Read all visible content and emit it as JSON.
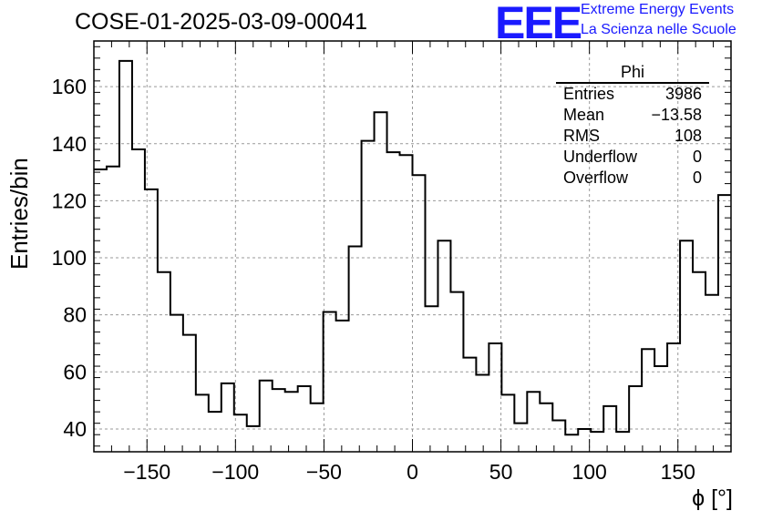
{
  "chart_data": {
    "type": "histogram",
    "title": "COSE-01-2025-03-09-00041",
    "xlabel": "ϕ [°]",
    "ylabel": "Entries/bin",
    "xlim": [
      -180,
      180
    ],
    "ylim": [
      32,
      176
    ],
    "bin_width": 7.2,
    "x_ticks": [
      -150,
      -100,
      -50,
      0,
      50,
      100,
      150
    ],
    "x_tick_labels": [
      "−150",
      "−100",
      "−50",
      "0",
      "50",
      "100",
      "150"
    ],
    "y_ticks": [
      40,
      60,
      80,
      100,
      120,
      140,
      160
    ],
    "y_tick_labels": [
      "40",
      "60",
      "80",
      "100",
      "120",
      "140",
      "160"
    ],
    "grid": true,
    "line_color": "#000000",
    "values": [
      131,
      132,
      169,
      138,
      124,
      95,
      80,
      73,
      52,
      46,
      56,
      45,
      41,
      57,
      54,
      53,
      55,
      49,
      81,
      78,
      104,
      141,
      151,
      137,
      136,
      129,
      83,
      106,
      88,
      65,
      59,
      70,
      52,
      42,
      53,
      49,
      43,
      38,
      40,
      39,
      48,
      39,
      55,
      68,
      62,
      70,
      106,
      95,
      87,
      122
    ]
  },
  "stats_box": {
    "title": "Phi",
    "rows": [
      {
        "label": "Entries",
        "value": "3986"
      },
      {
        "label": "Mean",
        "value": "−13.58"
      },
      {
        "label": "RMS",
        "value": "108"
      },
      {
        "label": "Underflow",
        "value": "0"
      },
      {
        "label": "Overflow",
        "value": "0"
      }
    ]
  },
  "logo": {
    "mark": "EEE",
    "line1": "Extreme Energy Events",
    "line2": "La Scienza nelle Scuole",
    "color": "#1a1aff"
  }
}
